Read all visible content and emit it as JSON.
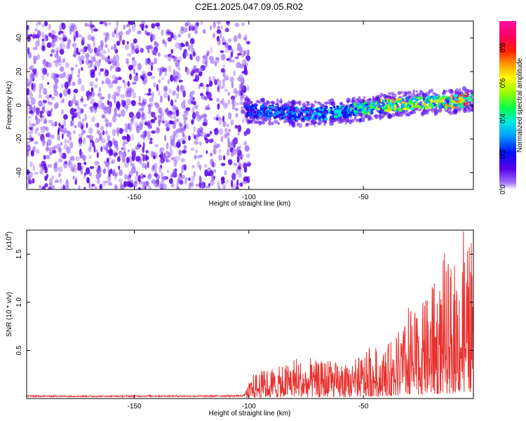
{
  "title": "C2E1.2025.047.09.05.R02",
  "chart_data": [
    {
      "type": "heatmap",
      "xlabel": "Height of straight line (km)",
      "ylabel": "Frequency (Hz)",
      "xlim": [
        -197,
        -2
      ],
      "ylim": [
        -50,
        50
      ],
      "xticks": [
        -150,
        -100,
        -50
      ],
      "yticks": [
        -40,
        -20,
        0,
        20,
        40
      ],
      "colorbar": {
        "label": "Normalized spectral amplitude",
        "range": [
          0,
          0.95
        ],
        "ticks": [
          "0.0",
          "0.2",
          "0.4",
          "0.6",
          "0.8"
        ],
        "tick_values": [
          0,
          0.2,
          0.4,
          0.6,
          0.8
        ]
      },
      "noise_region": {
        "x_range": [
          -197,
          -100
        ],
        "y_range": [
          -50,
          50
        ],
        "amplitude": 0.05
      },
      "signal_ridge": {
        "x": [
          -102,
          -90,
          -80,
          -70,
          -60,
          -50,
          -40,
          -30,
          -20,
          -10,
          -2
        ],
        "freq": [
          -3,
          -4,
          -5,
          -5,
          -4,
          -2,
          0,
          1,
          2,
          2,
          4
        ],
        "amplitude": [
          0.25,
          0.3,
          0.3,
          0.35,
          0.4,
          0.5,
          0.65,
          0.7,
          0.6,
          0.75,
          0.9
        ]
      }
    },
    {
      "type": "line",
      "xlabel": "Height of straight line (km)",
      "ylabel": "SNR (10 * v/v)",
      "scale_label": "(x10",
      "scale_exp": "4",
      "xlim": [
        -197,
        -2
      ],
      "ylim": [
        0,
        17500
      ],
      "xticks": [
        -150,
        -100,
        -50
      ],
      "yticks": [
        5000,
        10000,
        15000
      ],
      "ytick_labels": [
        "0.5",
        "1.0",
        "1.5"
      ],
      "series": [
        {
          "color": "#e8322f",
          "x": [
            -197,
            -180,
            -160,
            -140,
            -120,
            -102,
            -100,
            -98,
            -95,
            -90,
            -85,
            -80,
            -75,
            -70,
            -65,
            -60,
            -55,
            -50,
            -45,
            -40,
            -35,
            -30,
            -25,
            -20,
            -15,
            -10,
            -5,
            -2
          ],
          "y": [
            250,
            250,
            240,
            260,
            250,
            300,
            1200,
            2000,
            2200,
            2500,
            2600,
            3500,
            2800,
            2900,
            3300,
            2600,
            2600,
            3700,
            3800,
            4200,
            5400,
            6500,
            7500,
            8500,
            10000,
            11000,
            12500,
            13000
          ]
        }
      ]
    }
  ]
}
